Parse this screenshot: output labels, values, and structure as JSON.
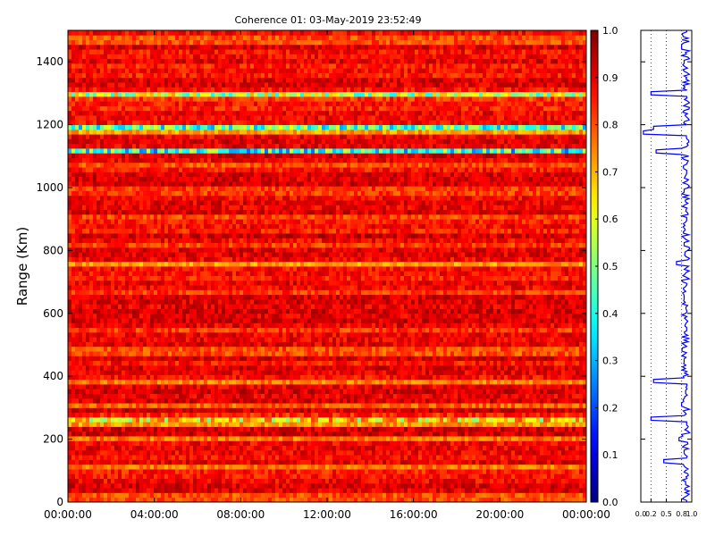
{
  "chart_data": [
    {
      "type": "heatmap",
      "title": "Coherence 01: 03-May-2019 23:52:49",
      "xlabel": "",
      "ylabel": "Range (Km)",
      "x_ticks": [
        "00:00:00",
        "04:00:00",
        "08:00:00",
        "12:00:00",
        "16:00:00",
        "20:00:00",
        "00:00:00"
      ],
      "ylim": [
        0,
        1500
      ],
      "y_ticks": [
        0,
        200,
        400,
        600,
        800,
        1000,
        1200,
        1400
      ],
      "colorbar": {
        "colormap": "jet",
        "range": [
          0.0,
          1.0
        ],
        "ticks": [
          "0.0",
          "0.1",
          "0.2",
          "0.3",
          "0.4",
          "0.5",
          "0.6",
          "0.7",
          "0.8",
          "0.9",
          "1.0"
        ]
      },
      "row_profile": {
        "range_step_km": 15,
        "base_coherence": 0.88,
        "low_coherence_bands": [
          {
            "range_km": 1470,
            "coherence": 0.8
          },
          {
            "range_km": 1300,
            "coherence": 0.55
          },
          {
            "range_km": 1285,
            "coherence": 0.82
          },
          {
            "range_km": 1190,
            "coherence": 0.45
          },
          {
            "range_km": 1175,
            "coherence": 0.72
          },
          {
            "range_km": 1115,
            "coherence": 0.4
          },
          {
            "range_km": 1075,
            "coherence": 0.8
          },
          {
            "range_km": 990,
            "coherence": 0.82
          },
          {
            "range_km": 910,
            "coherence": 0.81
          },
          {
            "range_km": 820,
            "coherence": 0.82
          },
          {
            "range_km": 760,
            "coherence": 0.72
          },
          {
            "range_km": 665,
            "coherence": 0.82
          },
          {
            "range_km": 550,
            "coherence": 0.82
          },
          {
            "range_km": 480,
            "coherence": 0.8
          },
          {
            "range_km": 385,
            "coherence": 0.75
          },
          {
            "range_km": 310,
            "coherence": 0.78
          },
          {
            "range_km": 265,
            "coherence": 0.65
          },
          {
            "range_km": 250,
            "coherence": 0.72
          },
          {
            "range_km": 200,
            "coherence": 0.76
          },
          {
            "range_km": 110,
            "coherence": 0.76
          },
          {
            "range_km": 15,
            "coherence": 0.8
          }
        ]
      }
    },
    {
      "type": "line",
      "title": "",
      "xlabel": "",
      "ylabel": "",
      "xlim": [
        0.0,
        1.0
      ],
      "x_ticks": [
        "0.0",
        "0.2",
        "0.5",
        "0.8",
        "1.0"
      ],
      "ylim": [
        0,
        1500
      ],
      "grid": "vertical dotted",
      "series": [
        {
          "color": "#0000ff",
          "range_km": [
            0,
            60,
            130,
            160,
            200,
            250,
            265,
            310,
            350,
            385,
            450,
            550,
            650,
            760,
            820,
            900,
            990,
            1050,
            1115,
            1175,
            1190,
            1300,
            1400,
            1450,
            1500
          ],
          "coherence": [
            0.9,
            0.88,
            0.45,
            0.85,
            0.75,
            0.9,
            0.2,
            0.8,
            0.88,
            0.25,
            0.85,
            0.9,
            0.85,
            0.7,
            0.85,
            0.9,
            0.85,
            0.9,
            0.3,
            0.05,
            0.25,
            0.2,
            0.85,
            0.8,
            0.9
          ]
        }
      ]
    }
  ]
}
